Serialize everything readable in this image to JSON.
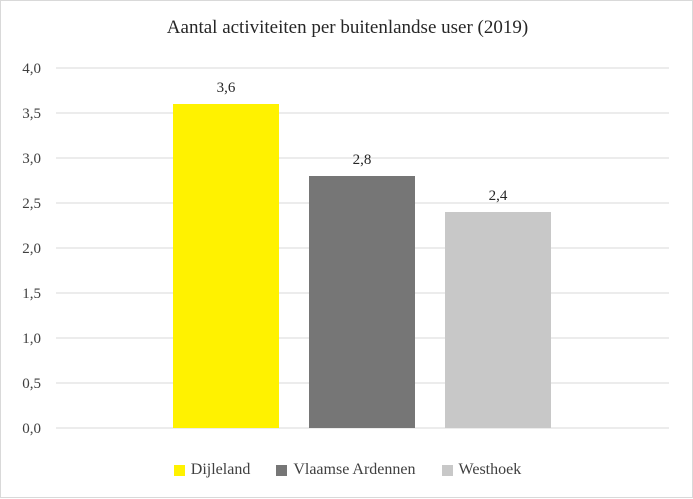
{
  "chart_data": {
    "type": "bar",
    "title": "Aantal activiteiten per buitenlandse user (2019)",
    "xlabel": "",
    "ylabel": "",
    "ylim": [
      0,
      4
    ],
    "yticks": [
      "0,0",
      "0,5",
      "1,0",
      "1,5",
      "2,0",
      "2,5",
      "3,0",
      "3,5",
      "4,0"
    ],
    "grid": true,
    "legend_position": "bottom",
    "series": [
      {
        "name": "Dijleland",
        "value": 3.6,
        "label": "3,6",
        "color": "#fff200"
      },
      {
        "name": "Vlaamse Ardennen",
        "value": 2.8,
        "label": "2,8",
        "color": "#767676"
      },
      {
        "name": "Westhoek",
        "value": 2.4,
        "label": "2,4",
        "color": "#c8c8c8"
      }
    ]
  }
}
